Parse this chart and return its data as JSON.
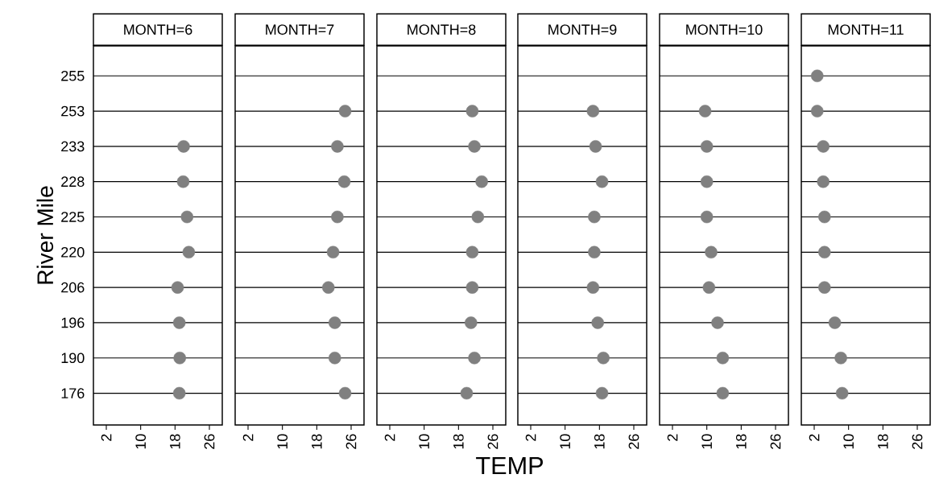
{
  "chart_data": [
    {
      "type": "scatter",
      "orientation": "horizontal",
      "title": "MONTH=6",
      "ylabel": "River Mile",
      "categories": [
        "255",
        "253",
        "233",
        "228",
        "225",
        "220",
        "206",
        "196",
        "190",
        "176"
      ],
      "values": [
        null,
        null,
        20.0,
        19.9,
        20.8,
        21.2,
        18.6,
        19.0,
        19.1,
        19.0
      ],
      "color": "#808080",
      "xlim": [
        -1,
        29
      ],
      "xticks": [
        2,
        10,
        18,
        26
      ],
      "grid": "y"
    },
    {
      "type": "scatter",
      "orientation": "horizontal",
      "title": "MONTH=7",
      "categories": [
        "255",
        "253",
        "233",
        "228",
        "225",
        "220",
        "206",
        "196",
        "190",
        "176"
      ],
      "values": [
        null,
        24.6,
        22.8,
        24.4,
        22.8,
        21.8,
        20.7,
        22.2,
        22.2,
        24.6
      ],
      "color": "#808080",
      "xlim": [
        -1,
        29
      ],
      "xticks": [
        2,
        10,
        18,
        26
      ],
      "grid": "y",
      "tick_labels": "x"
    },
    {
      "type": "scatter",
      "orientation": "horizontal",
      "title": "MONTH=8",
      "xlabel": "TEMP",
      "categories": [
        "255",
        "253",
        "233",
        "228",
        "225",
        "220",
        "206",
        "196",
        "190",
        "176"
      ],
      "values": [
        null,
        21.2,
        21.7,
        23.4,
        22.5,
        21.2,
        21.2,
        20.9,
        21.7,
        19.9
      ],
      "color": "#808080",
      "xlim": [
        -1,
        29
      ],
      "xticks": [
        2,
        10,
        18,
        26
      ],
      "grid": "y",
      "tick_labels": "x"
    },
    {
      "type": "scatter",
      "orientation": "horizontal",
      "title": "MONTH=9",
      "categories": [
        "255",
        "253",
        "233",
        "228",
        "225",
        "220",
        "206",
        "196",
        "190",
        "176"
      ],
      "values": [
        null,
        16.5,
        17.1,
        18.6,
        16.8,
        16.8,
        16.5,
        17.6,
        18.9,
        18.6
      ],
      "color": "#808080",
      "xlim": [
        -1,
        29
      ],
      "xticks": [
        2,
        10,
        18,
        26
      ],
      "grid": "y",
      "tick_labels": "x"
    },
    {
      "type": "scatter",
      "orientation": "horizontal",
      "title": "MONTH=10",
      "categories": [
        "255",
        "253",
        "233",
        "228",
        "225",
        "220",
        "206",
        "196",
        "190",
        "176"
      ],
      "values": [
        null,
        9.6,
        10.0,
        10.0,
        10.0,
        11.0,
        10.5,
        12.5,
        13.7,
        13.7
      ],
      "color": "#808080",
      "xlim": [
        -1,
        29
      ],
      "xticks": [
        2,
        10,
        18,
        26
      ],
      "grid": "y",
      "tick_labels": "x"
    },
    {
      "type": "scatter",
      "orientation": "horizontal",
      "title": "MONTH=11",
      "categories": [
        "255",
        "253",
        "233",
        "228",
        "225",
        "220",
        "206",
        "196",
        "190",
        "176"
      ],
      "values": [
        2.7,
        2.7,
        4.1,
        4.1,
        4.4,
        4.4,
        4.4,
        6.8,
        8.2,
        8.5
      ],
      "color": "#808080",
      "xlim": [
        -1,
        29
      ],
      "xticks": [
        2,
        10,
        18,
        26
      ],
      "grid": "y",
      "tick_labels": "x"
    }
  ]
}
